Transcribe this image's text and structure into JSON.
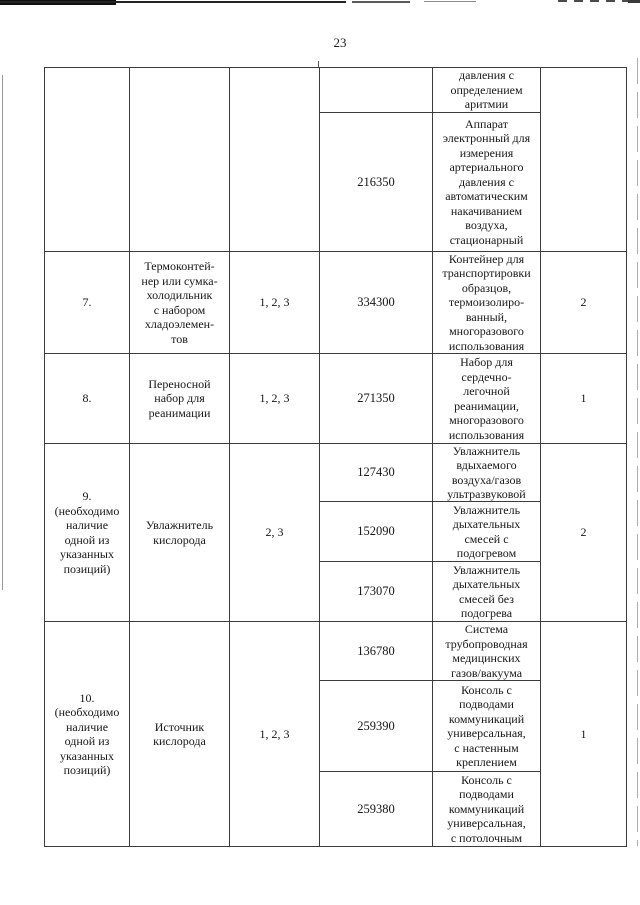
{
  "page_number": "23",
  "table": {
    "continuation": {
      "desc_top": "давления с\nопределением\nаритмии",
      "code": "216350",
      "desc_code": "Аппарат\nэлектронный для\nизмерения\nартериального\nдавления с\nавтоматическим\nнакачиванием\nвоздуха,\nстационарный"
    },
    "row7": {
      "num": "7.",
      "name": "Термоконтей-\nнер или сумка-\nхолодильник\nс набором\nхладоэлемен-\nтов",
      "levels": "1, 2, 3",
      "code": "334300",
      "desc": "Контейнер для\nтранспортировки\nобразцов,\nтермоизолиро-\nванный,\nмногоразового\nиспользования",
      "qty": "2"
    },
    "row8": {
      "num": "8.",
      "name": "Переносной\nнабор для\nреанимации",
      "levels": "1, 2, 3",
      "code": "271350",
      "desc": "Набор для\nсердечно-\nлегочной\nреанимации,\nмногоразового\nиспользования",
      "qty": "1"
    },
    "row9": {
      "num": "9.\n(необходимо\nналичие\nодной из\nуказанных\nпозиций)",
      "name": "Увлажнитель\nкислорода",
      "levels": "2, 3",
      "qty": "2",
      "sub1": {
        "code": "127430",
        "desc": "Увлажнитель\nвдыхаемого\nвоздуха/газов\nультразвуковой"
      },
      "sub2": {
        "code": "152090",
        "desc": "Увлажнитель\nдыхательных\nсмесей с\nподогревом"
      },
      "sub3": {
        "code": "173070",
        "desc": "Увлажнитель\nдыхательных\nсмесей без\nподогрева"
      }
    },
    "row10": {
      "num": "10.\n(необходимо\nналичие\nодной из\nуказанных\nпозиций)",
      "name": "Источник\nкислорода",
      "levels": "1, 2, 3",
      "qty": "1",
      "sub1": {
        "code": "136780",
        "desc": "Система\nтрубопроводная\nмедицинских\nгазов/вакуума"
      },
      "sub2": {
        "code": "259390",
        "desc": "Консоль с\nподводами\nкоммуникаций\nуниверсальная,\nс настенным\nкреплением"
      },
      "sub3": {
        "code": "259380",
        "desc": "Консоль с\nподводами\nкоммуникаций\nуниверсальная,\nс потолочным"
      }
    }
  }
}
